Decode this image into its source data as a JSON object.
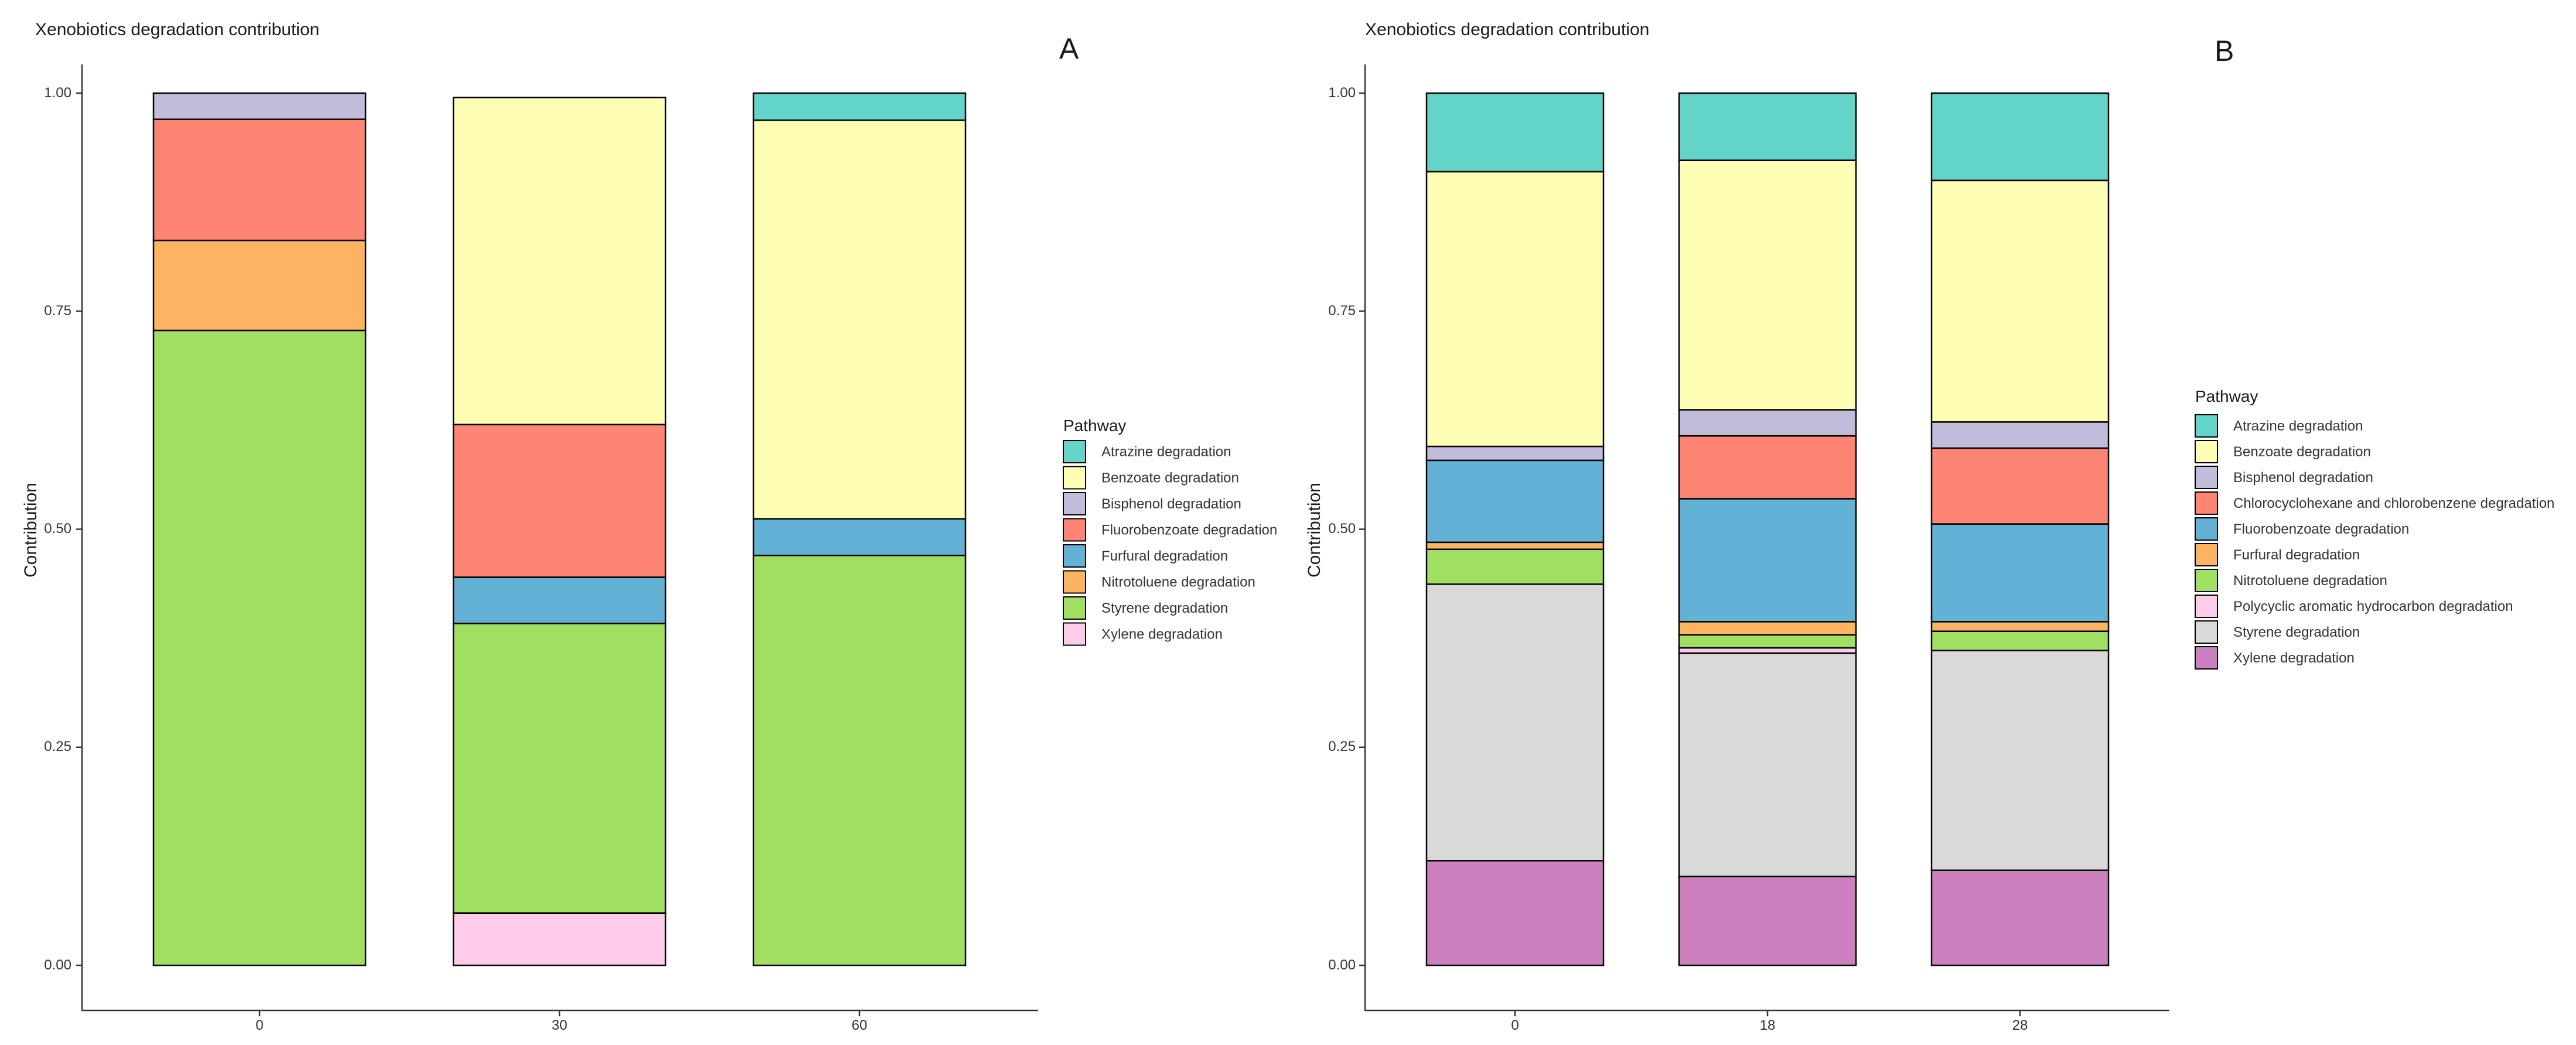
{
  "chart_data": [
    {
      "panel": "A",
      "type": "bar",
      "stacked": true,
      "title": "Xenobiotics degradation contribution",
      "xlabel": "",
      "ylabel": "Contribution",
      "ylim": [
        0,
        1
      ],
      "yticks": [
        "0.00",
        "0.25",
        "0.50",
        "0.75",
        "1.00"
      ],
      "categories": [
        "0",
        "30",
        "60"
      ],
      "legend_title": "Pathway",
      "legend_position": "right",
      "series": [
        {
          "name": "Atrazine degradation",
          "color": "#62d5c8",
          "values": [
            0,
            0,
            0.031
          ]
        },
        {
          "name": "Benzoate degradation",
          "color": "#fefdb4",
          "values": [
            0,
            0.375,
            0.457
          ]
        },
        {
          "name": "Bisphenol degradation",
          "color": "#c2bcdb",
          "values": [
            0.03,
            0,
            0
          ]
        },
        {
          "name": "Fluorobenzoate degradation",
          "color": "#fe8473",
          "values": [
            0.139,
            0.175,
            0
          ]
        },
        {
          "name": "Furfural degradation",
          "color": "#63b1d4",
          "values": [
            0,
            0.053,
            0.042
          ]
        },
        {
          "name": "Nitrotoluene degradation",
          "color": "#fdb462",
          "values": [
            0.103,
            0,
            0
          ]
        },
        {
          "name": "Styrene degradation",
          "color": "#a1df63",
          "values": [
            0.728,
            0.332,
            0.47
          ]
        },
        {
          "name": "Xylene degradation",
          "color": "#fcccea",
          "values": [
            0,
            0.06,
            0
          ]
        }
      ]
    },
    {
      "panel": "B",
      "type": "bar",
      "stacked": true,
      "title": "Xenobiotics degradation contribution",
      "xlabel": "",
      "ylabel": "Contribution",
      "ylim": [
        0,
        1
      ],
      "yticks": [
        "0.00",
        "0.25",
        "0.50",
        "0.75",
        "1.00"
      ],
      "categories": [
        "0",
        "18",
        "28"
      ],
      "legend_title": "Pathway",
      "legend_position": "right",
      "series": [
        {
          "name": "Atrazine degradation",
          "color": "#62d5c8",
          "values": [
            0.09,
            0.077,
            0.1
          ]
        },
        {
          "name": "Benzoate degradation",
          "color": "#fefdb4",
          "values": [
            0.315,
            0.286,
            0.277
          ]
        },
        {
          "name": "Bisphenol degradation",
          "color": "#c2bcdb",
          "values": [
            0.016,
            0.03,
            0.03
          ]
        },
        {
          "name": "Chlorocyclohexane and chlorobenzene degradation",
          "color": "#fe8473",
          "values": [
            0,
            0.072,
            0.087
          ]
        },
        {
          "name": "Fluorobenzoate degradation",
          "color": "#63b1d4",
          "values": [
            0.094,
            0.141,
            0.112
          ]
        },
        {
          "name": "Furfural degradation",
          "color": "#fdb462",
          "values": [
            0.008,
            0.015,
            0.011
          ]
        },
        {
          "name": "Nitrotoluene degradation",
          "color": "#a1df63",
          "values": [
            0.04,
            0.015,
            0.022
          ]
        },
        {
          "name": "Polycyclic aromatic hydrocarbon degradation",
          "color": "#fcccea",
          "values": [
            0,
            0.006,
            0
          ]
        },
        {
          "name": "Styrene degradation",
          "color": "#d9d9d9",
          "values": [
            0.317,
            0.256,
            0.252
          ]
        },
        {
          "name": "Xylene degradation",
          "color": "#cd80c0",
          "values": [
            0.12,
            0.102,
            0.109
          ]
        }
      ]
    }
  ]
}
